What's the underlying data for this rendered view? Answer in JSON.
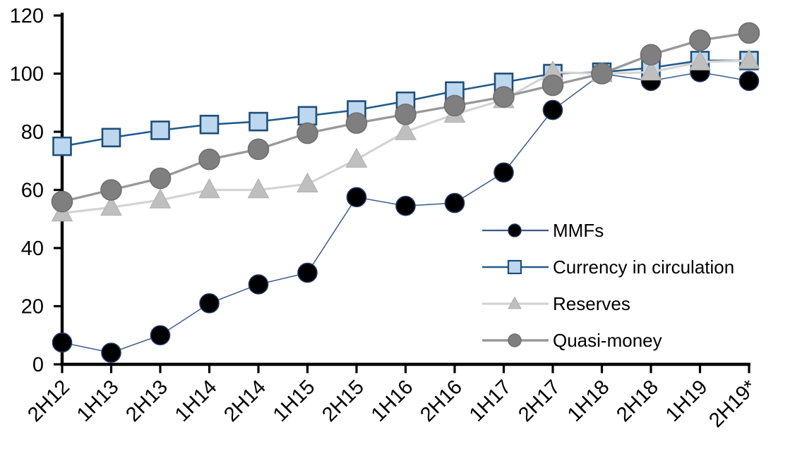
{
  "chart_data": {
    "type": "line",
    "title": "",
    "categories": [
      "2H12",
      "1H13",
      "2H13",
      "1H14",
      "2H14",
      "1H15",
      "2H15",
      "1H16",
      "2H16",
      "1H17",
      "2H17",
      "1H18",
      "2H18",
      "1H19",
      "2H19*"
    ],
    "ylim": [
      0,
      120
    ],
    "yticks": [
      0,
      20,
      40,
      60,
      80,
      100,
      120
    ],
    "grid": false,
    "legend_position": "inside-right-middle",
    "axis_color": "#000000",
    "text_color": "#000000",
    "background": "#FFFFFF",
    "series": [
      {
        "name": "MMFs",
        "marker": "circle",
        "marker_fill": "#000000",
        "marker_stroke": "#1F3864",
        "line_color": "#3A5A8C",
        "line_width": 1.5,
        "marker_size": 27,
        "values": [
          7.5,
          4,
          10,
          21,
          27.5,
          31.5,
          57.5,
          54.5,
          55.5,
          66,
          87.5,
          100,
          97.5,
          100.5,
          97.5
        ]
      },
      {
        "name": "Currency in circulation",
        "marker": "square",
        "marker_fill": "#BDD7EE",
        "marker_stroke": "#1F4E79",
        "line_color": "#245C8C",
        "line_width": 2.6,
        "marker_size": 25,
        "values": [
          75,
          78,
          80.5,
          82.5,
          83.5,
          85.5,
          87.5,
          90.5,
          94,
          97,
          100,
          100.5,
          102,
          104.5,
          104.5
        ]
      },
      {
        "name": "Reserves",
        "marker": "triangle",
        "marker_fill": "#BFBFBF",
        "marker_stroke": "#AFAFAF",
        "line_color": "#D4D4D4",
        "line_width": 3.2,
        "marker_size": 29,
        "values": [
          52,
          54,
          56.5,
          60,
          60,
          62,
          70.5,
          80,
          86,
          91,
          100.5,
          100,
          100.5,
          104,
          104.5
        ]
      },
      {
        "name": "Quasi-money",
        "marker": "circle",
        "marker_fill": "#7F7F7F",
        "marker_stroke": "#6F6F6F",
        "line_color": "#999999",
        "line_width": 3.4,
        "marker_size": 29,
        "values": [
          56,
          60,
          64,
          70.5,
          74,
          79.5,
          83,
          86,
          89,
          92,
          96,
          100,
          106.5,
          111.5,
          114
        ]
      }
    ]
  }
}
